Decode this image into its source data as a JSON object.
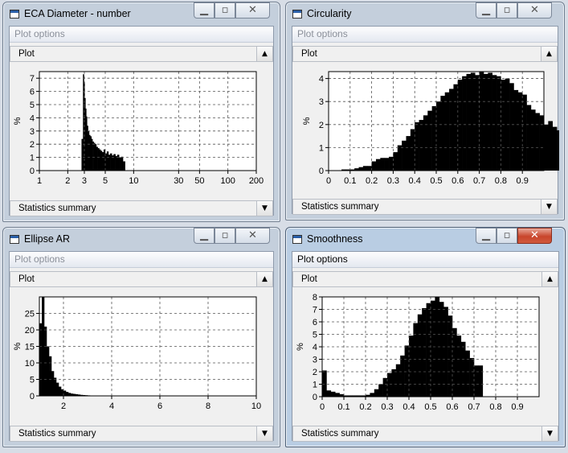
{
  "windows": [
    {
      "id": "eca",
      "title": "ECA Diameter - number",
      "plot_options_label": "Plot options",
      "plot_label": "Plot",
      "stats_label": "Statistics summary",
      "chart_data": {
        "type": "bar",
        "xscale": "log",
        "xlim": [
          1,
          200
        ],
        "ylim": [
          0,
          7.5
        ],
        "ylabel": "%",
        "xticks": [
          1,
          2,
          3,
          5,
          10,
          30,
          50,
          100,
          200
        ],
        "yticks": [
          0,
          1,
          2,
          3,
          4,
          5,
          6,
          7
        ],
        "bins": [
          [
            2.8,
            2.9,
            2.4
          ],
          [
            2.9,
            2.97,
            7.3
          ],
          [
            2.97,
            3.02,
            6.7
          ],
          [
            3.02,
            3.08,
            5.5
          ],
          [
            3.08,
            3.14,
            4.7
          ],
          [
            3.14,
            3.2,
            4.1
          ],
          [
            3.2,
            3.28,
            3.4
          ],
          [
            3.28,
            3.37,
            3.0
          ],
          [
            3.37,
            3.46,
            2.7
          ],
          [
            3.46,
            3.56,
            2.6
          ],
          [
            3.56,
            3.66,
            2.4
          ],
          [
            3.66,
            3.77,
            2.2
          ],
          [
            3.77,
            3.89,
            2.1
          ],
          [
            3.89,
            4.02,
            2.0
          ],
          [
            4.02,
            4.16,
            1.8
          ],
          [
            4.16,
            4.31,
            1.7
          ],
          [
            4.31,
            4.46,
            1.6
          ],
          [
            4.46,
            4.62,
            1.5
          ],
          [
            4.62,
            4.8,
            1.4
          ],
          [
            4.8,
            4.99,
            1.6
          ],
          [
            4.99,
            5.19,
            1.3
          ],
          [
            5.19,
            5.4,
            1.45
          ],
          [
            5.4,
            5.63,
            1.2
          ],
          [
            5.63,
            5.87,
            1.3
          ],
          [
            5.87,
            6.12,
            1.15
          ],
          [
            6.12,
            6.4,
            1.25
          ],
          [
            6.4,
            6.7,
            1.1
          ],
          [
            6.7,
            7.0,
            1.2
          ],
          [
            7.0,
            7.35,
            1.0
          ],
          [
            7.35,
            7.7,
            1.05
          ],
          [
            7.7,
            8.1,
            0.7
          ]
        ]
      }
    },
    {
      "id": "circ",
      "title": "Circularity",
      "plot_options_label": "Plot options",
      "plot_label": "Plot",
      "stats_label": "Statistics summary",
      "chart_data": {
        "type": "bar",
        "xlim": [
          0,
          1
        ],
        "ylim": [
          0,
          4.3
        ],
        "ylabel": "%",
        "xticks": [
          0,
          0.1,
          0.2,
          0.3,
          0.4,
          0.5,
          0.6,
          0.7,
          0.8,
          0.9
        ],
        "yticks": [
          0,
          1,
          2,
          3,
          4
        ],
        "bin_width": 0.02,
        "bin_start": 0.0,
        "values": [
          0,
          0,
          0,
          0.05,
          0.05,
          0.05,
          0.1,
          0.15,
          0.2,
          0.2,
          0.4,
          0.5,
          0.55,
          0.55,
          0.6,
          0.8,
          1.1,
          1.3,
          1.5,
          1.8,
          2.1,
          2.2,
          2.4,
          2.6,
          2.8,
          3.0,
          3.25,
          3.4,
          3.55,
          3.75,
          3.95,
          4.1,
          4.2,
          4.25,
          4.15,
          4.3,
          4.2,
          4.25,
          4.15,
          4.1,
          3.95,
          4.0,
          3.8,
          3.5,
          3.4,
          3.3,
          2.85,
          2.65,
          2.5,
          2.4,
          2.0,
          2.15,
          1.9,
          1.75,
          1.5,
          1.3,
          1.1,
          0.85,
          0.6,
          0.35,
          0.3,
          0.25,
          0.2,
          0.15,
          0.12,
          0.1,
          0.1,
          0.2,
          0.15,
          0.1,
          0.1,
          0.1,
          0.08,
          0.08,
          0.08,
          0.08,
          0.1,
          0.1,
          0.1,
          0.12,
          0.15,
          0.2,
          0.3,
          0.45,
          0.55,
          0.7,
          0.9,
          1.1,
          1.35,
          1.6,
          1.85,
          2.1,
          2.3,
          2.5,
          2.55,
          2.6,
          2.45,
          2.0,
          1.4,
          0.8,
          0.1,
          0.1,
          2.45
        ]
      }
    },
    {
      "id": "ear",
      "title": "Ellipse AR",
      "plot_options_label": "Plot options",
      "plot_label": "Plot",
      "stats_label": "Statistics summary",
      "chart_data": {
        "type": "bar",
        "xlim": [
          1,
          10
        ],
        "ylim": [
          0,
          30
        ],
        "ylabel": "%",
        "xticks": [
          2,
          4,
          6,
          8,
          10
        ],
        "yticks": [
          0,
          5,
          10,
          15,
          20,
          25
        ],
        "bin_width": 0.1,
        "bin_start": 1.0,
        "values": [
          22,
          30,
          21,
          15,
          12,
          7.5,
          5.5,
          4,
          2.8,
          2,
          1.6,
          1.2,
          0.9,
          0.7,
          0.6,
          0.5,
          0.4,
          0.3,
          0.25,
          0.2,
          0.15,
          0.12,
          0.1,
          0.08,
          0.06,
          0.05,
          0.04,
          0.03,
          0.03,
          0.02
        ]
      }
    },
    {
      "id": "smooth",
      "title": "Smoothness",
      "plot_options_label": "Plot options",
      "plot_label": "Plot",
      "stats_label": "Statistics summary",
      "chart_data": {
        "type": "bar",
        "xlim": [
          0,
          1
        ],
        "ylim": [
          0,
          8
        ],
        "ylabel": "%",
        "xticks": [
          0,
          0.1,
          0.2,
          0.3,
          0.4,
          0.5,
          0.6,
          0.7,
          0.8,
          0.9
        ],
        "yticks": [
          0,
          1,
          2,
          3,
          4,
          5,
          6,
          7,
          8
        ],
        "bin_width": 0.02,
        "bin_start": 0.0,
        "values": [
          2.1,
          0.5,
          0.4,
          0.3,
          0.2,
          0.1,
          0.1,
          0.1,
          0.1,
          0.1,
          0.15,
          0.3,
          0.6,
          1.0,
          1.5,
          1.9,
          2.2,
          2.6,
          3.3,
          4.1,
          4.9,
          5.9,
          6.6,
          7.1,
          7.5,
          7.7,
          8.0,
          7.6,
          7.2,
          6.5,
          5.5,
          4.9,
          4.4,
          3.7,
          3.1,
          2.5,
          2.5,
          0,
          0,
          0,
          0,
          0,
          0,
          0,
          0,
          0,
          0,
          0,
          0,
          0
        ]
      }
    }
  ]
}
